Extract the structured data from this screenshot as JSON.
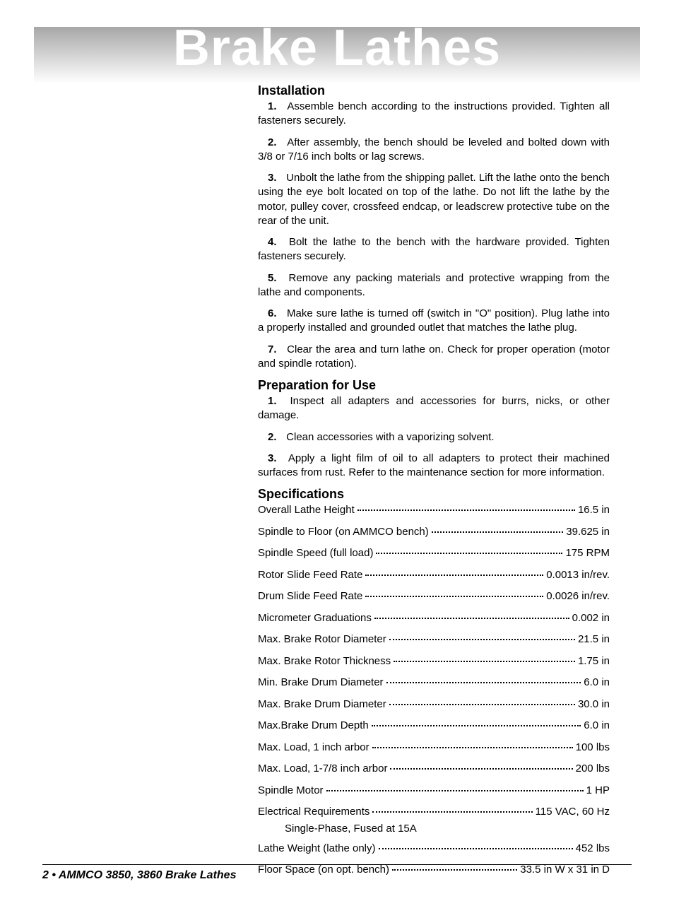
{
  "watermark": "Brake Lathes",
  "sections": {
    "installation": {
      "title": "Installation",
      "steps": [
        {
          "n": "1.",
          "text": "Assemble bench according to the instructions provided. Tighten all fasteners securely."
        },
        {
          "n": "2.",
          "text": "After assembly, the bench should be leveled and bolted down with 3/8 or 7/16 inch bolts or lag screws."
        },
        {
          "n": "3.",
          "text": "Unbolt the lathe from the shipping pallet. Lift the lathe onto the bench using the eye bolt located on top of the lathe. Do not lift the lathe by the motor, pulley cover, crossfeed endcap, or leadscrew protective tube on the rear of the unit."
        },
        {
          "n": "4.",
          "text": "Bolt the lathe to the bench with the hardware provided. Tighten fasteners securely."
        },
        {
          "n": "5.",
          "text": "Remove any packing materials and protective wrapping from the lathe and components."
        },
        {
          "n": "6.",
          "text": "Make sure lathe is turned off (switch in \"O\" position). Plug lathe into a properly installed and grounded outlet that matches the lathe plug."
        },
        {
          "n": "7.",
          "text": "Clear the area and turn lathe on. Check for proper operation (motor and spindle rotation)."
        }
      ]
    },
    "preparation": {
      "title": "Preparation for Use",
      "steps": [
        {
          "n": "1.",
          "text": "Inspect all adapters and accessories for burrs, nicks, or other damage."
        },
        {
          "n": "2.",
          "text": "Clean accessories with a vaporizing solvent."
        },
        {
          "n": "3.",
          "text": "Apply a light film of oil to all adapters to protect their machined surfaces from rust. Refer to the maintenance section for more information."
        }
      ]
    },
    "specifications": {
      "title": "Specifications",
      "rows": [
        {
          "label": "Overall Lathe Height",
          "value": "16.5 in"
        },
        {
          "label": "Spindle to Floor (on AMMCO bench)",
          "value": "39.625 in"
        },
        {
          "label": "Spindle Speed (full load)",
          "value": "175 RPM"
        },
        {
          "label": "Rotor Slide Feed Rate",
          "value": "0.0013 in/rev."
        },
        {
          "label": "Drum Slide Feed Rate",
          "value": "0.0026 in/rev."
        },
        {
          "label": "Micrometer Graduations",
          "value": "0.002 in"
        },
        {
          "label": "Max. Brake Rotor Diameter",
          "value": "21.5 in"
        },
        {
          "label": "Max. Brake Rotor Thickness",
          "value": "1.75 in"
        },
        {
          "label": "Min. Brake Drum Diameter",
          "value": "6.0 in"
        },
        {
          "label": "Max. Brake Drum Diameter",
          "value": "30.0 in"
        },
        {
          "label": "Max.Brake Drum Depth",
          "value": "6.0 in"
        },
        {
          "label": "Max. Load, 1 inch arbor",
          "value": "100 lbs"
        },
        {
          "label": "Max. Load, 1-7/8 inch arbor",
          "value": "200 lbs"
        },
        {
          "label": "Spindle Motor",
          "value": "1 HP"
        },
        {
          "label": "Electrical Requirements",
          "value": "115 VAC, 60 Hz"
        }
      ],
      "electrical_extra": "Single-Phase, Fused at 15A",
      "rows_after": [
        {
          "label": "Lathe Weight (lathe only)",
          "value": "452 lbs"
        },
        {
          "label": "Floor Space (on opt. bench)",
          "value": "33.5 in W x 31 in D"
        }
      ]
    }
  },
  "footer": "2 • AMMCO 3850, 3860 Brake Lathes"
}
